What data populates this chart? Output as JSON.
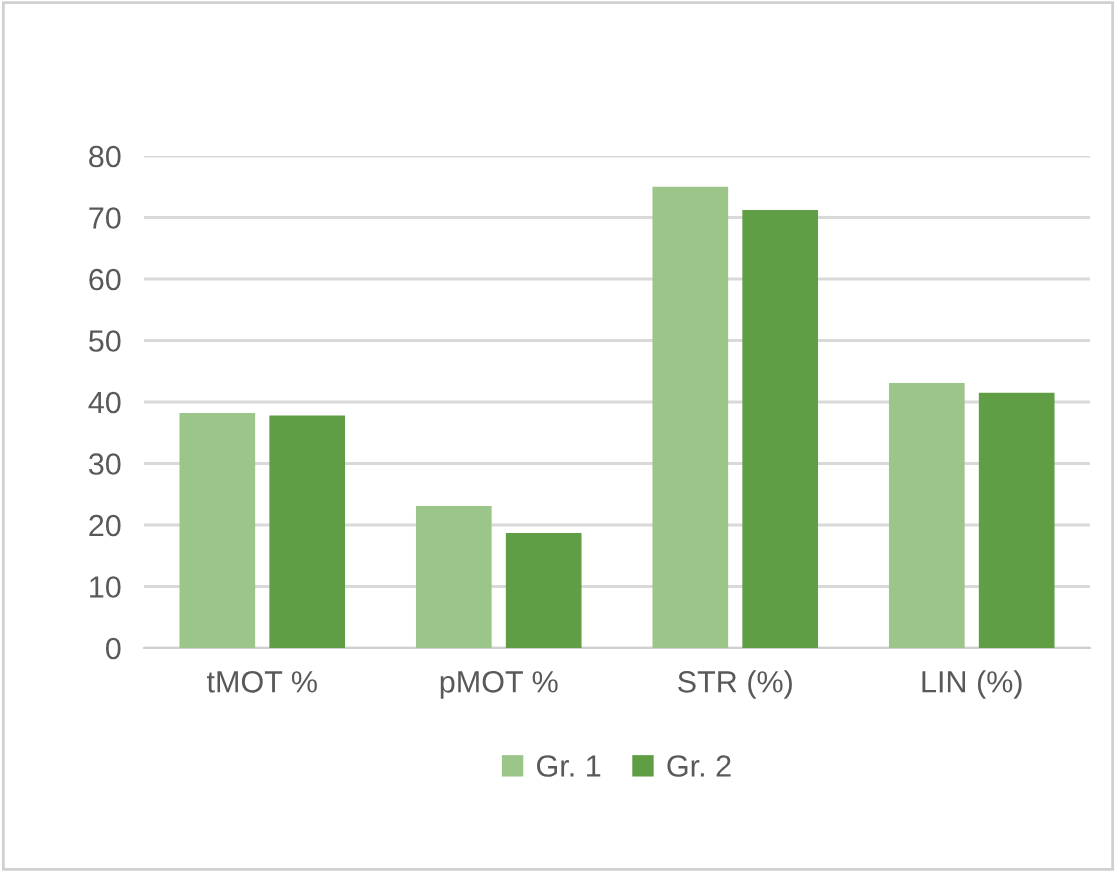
{
  "chart_data": {
    "type": "bar",
    "categories": [
      "tMOT %",
      "pMOT %",
      "STR (%)",
      "LIN (%)"
    ],
    "series": [
      {
        "name": "Gr. 1",
        "color": "#9cc58a",
        "values": [
          38.2,
          23.1,
          75.0,
          43.1
        ]
      },
      {
        "name": "Gr. 2",
        "color": "#5f9e44",
        "values": [
          37.8,
          18.7,
          71.2,
          41.5
        ]
      }
    ],
    "ylim": [
      0,
      80
    ],
    "yticks": [
      0,
      10,
      20,
      30,
      40,
      50,
      60,
      70,
      80
    ],
    "grid": "y",
    "legend": "bottom"
  }
}
